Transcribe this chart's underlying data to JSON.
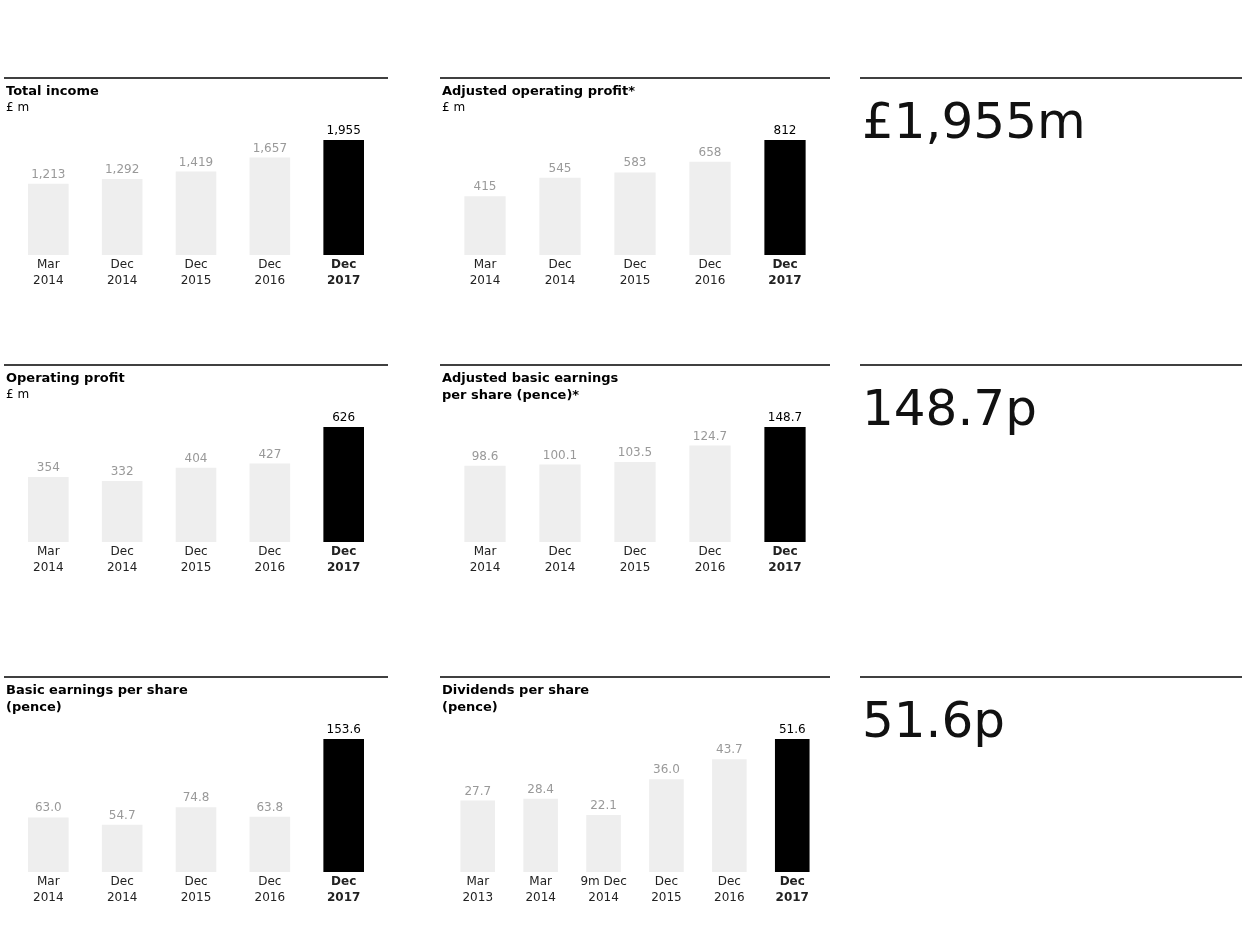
{
  "chart_data": [
    {
      "type": "bar",
      "title": "Total income",
      "subtitle": "£ m",
      "categories": [
        "Mar 2014",
        "Dec 2014",
        "Dec 2015",
        "Dec 2016",
        "Dec 2017"
      ],
      "values": [
        1213,
        1292,
        1419,
        1657,
        1955
      ],
      "value_labels": [
        "1,213",
        "1,292",
        "1,419",
        "1,657",
        "1,955"
      ],
      "colors": [
        "#eeeeee",
        "#eeeeee",
        "#eeeeee",
        "#eeeeee",
        "#000000"
      ]
    },
    {
      "type": "bar",
      "title": "Adjusted operating profit*",
      "subtitle": "£ m",
      "categories": [
        "Mar 2014",
        "Dec 2014",
        "Dec 2015",
        "Dec 2016",
        "Dec 2017"
      ],
      "values": [
        415,
        545,
        583,
        658,
        812
      ],
      "value_labels": [
        "415",
        "545",
        "583",
        "658",
        "812"
      ],
      "colors": [
        "#eeeeee",
        "#eeeeee",
        "#eeeeee",
        "#eeeeee",
        "#000000"
      ]
    },
    {
      "type": "other",
      "title": "£1,955m"
    },
    {
      "type": "bar",
      "title": "Operating profit",
      "subtitle": "£ m",
      "categories": [
        "Mar 2014",
        "Dec 2014",
        "Dec 2015",
        "Dec 2016",
        "Dec 2017"
      ],
      "values": [
        354,
        332,
        404,
        427,
        626
      ],
      "value_labels": [
        "354",
        "332",
        "404",
        "427",
        "626"
      ],
      "colors": [
        "#eeeeee",
        "#eeeeee",
        "#eeeeee",
        "#eeeeee",
        "#000000"
      ]
    },
    {
      "type": "bar",
      "title": "Adjusted basic earnings per share (pence)*",
      "categories": [
        "Mar 2014",
        "Dec 2014",
        "Dec 2015",
        "Dec 2016",
        "Dec 2017"
      ],
      "values": [
        98.6,
        100.1,
        103.5,
        124.7,
        148.7
      ],
      "value_labels": [
        "98.6",
        "100.1",
        "103.5",
        "124.7",
        "148.7"
      ],
      "colors": [
        "#eeeeee",
        "#eeeeee",
        "#eeeeee",
        "#eeeeee",
        "#000000"
      ]
    },
    {
      "type": "other",
      "title": "148.7p"
    },
    {
      "type": "bar",
      "title": "Basic earnings per share (pence)",
      "categories": [
        "Mar 2014",
        "Dec 2014",
        "Dec 2015",
        "Dec 2016",
        "Dec 2017"
      ],
      "values": [
        63.0,
        54.7,
        74.8,
        63.8,
        153.6
      ],
      "value_labels": [
        "63.0",
        "54.7",
        "74.8",
        "63.8",
        "153.6"
      ],
      "colors": [
        "#eeeeee",
        "#eeeeee",
        "#eeeeee",
        "#eeeeee",
        "#000000"
      ]
    },
    {
      "type": "bar",
      "title": "Dividends per share (pence)",
      "categories": [
        "Mar 2013",
        "Mar 2014",
        "9m Dec 2014",
        "Dec 2015",
        "Dec 2016",
        "Dec 2017"
      ],
      "values": [
        27.7,
        28.4,
        22.1,
        36.0,
        43.7,
        51.6
      ],
      "value_labels": [
        "27.7",
        "28.4",
        "22.1",
        "36.0",
        "43.7",
        "51.6"
      ],
      "colors": [
        "#eeeeee",
        "#eeeeee",
        "#eeeeee",
        "#eeeeee",
        "#eeeeee",
        "#000000"
      ]
    },
    {
      "type": "other",
      "title": "51.6p"
    }
  ]
}
